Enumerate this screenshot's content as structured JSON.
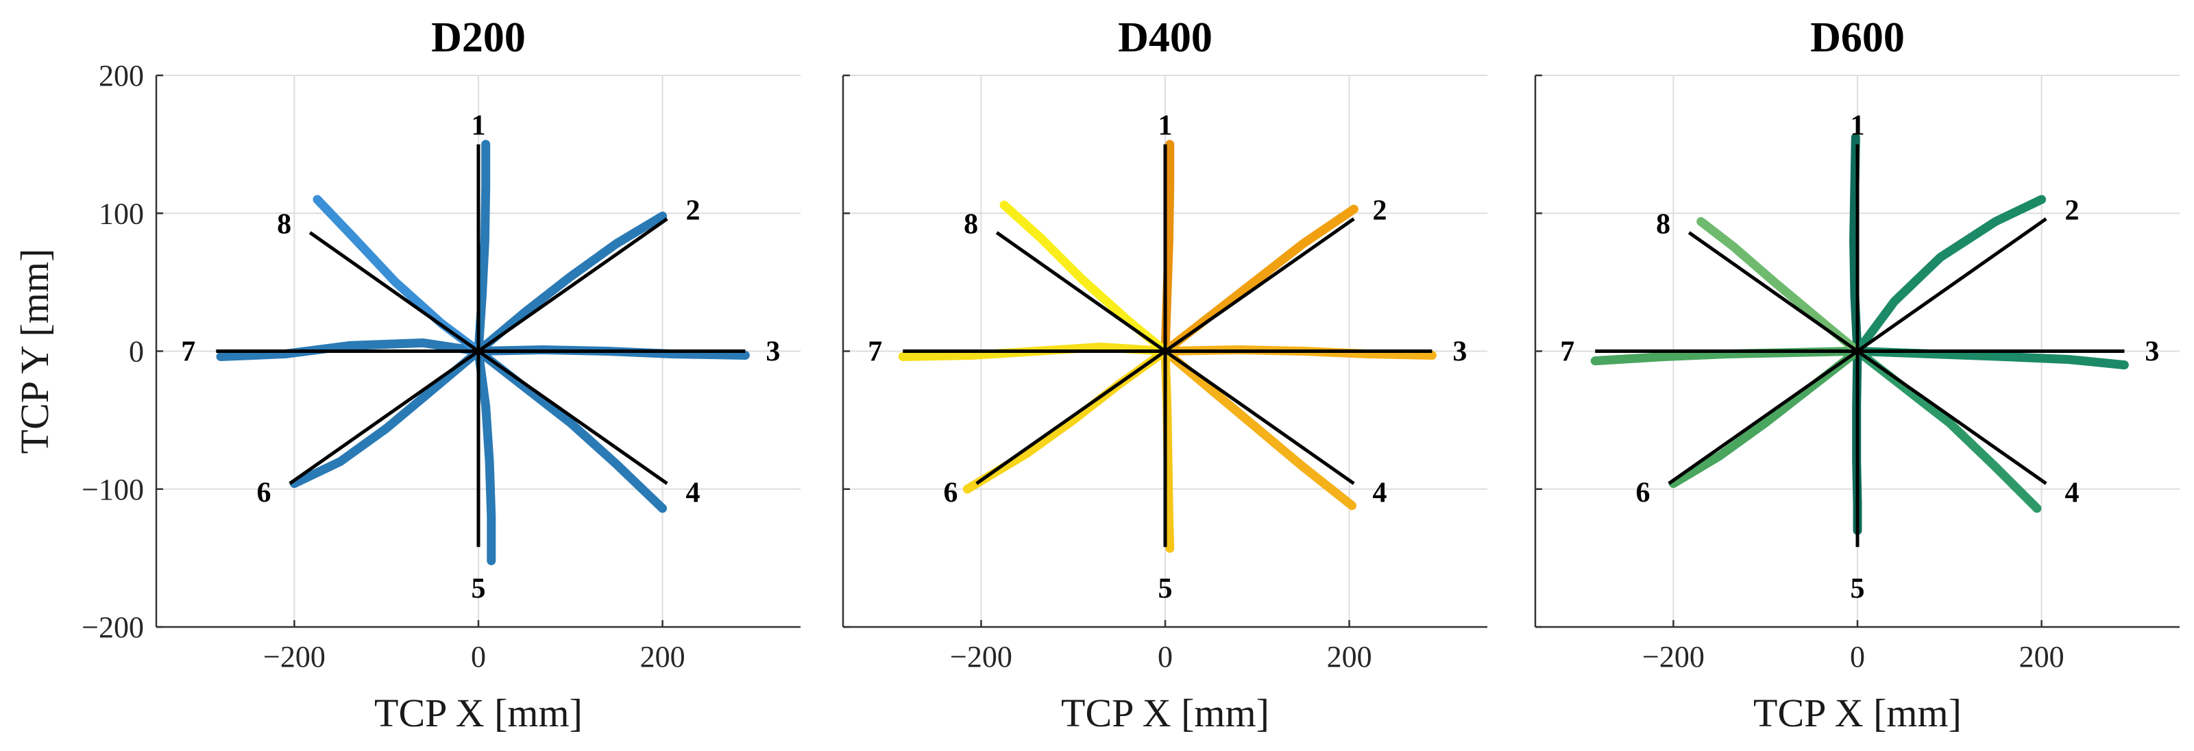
{
  "chart_data": [
    {
      "type": "line",
      "title": "D200",
      "xlabel": "TCP X [mm]",
      "ylabel": "TCP Y [mm]",
      "xlim": [
        -350,
        350
      ],
      "ylim": [
        -200,
        200
      ],
      "xticks": [
        -200,
        0,
        200
      ],
      "yticks": [
        -200,
        -100,
        0,
        100,
        200
      ],
      "xtick_labels": [
        "−200",
        "0",
        "200"
      ],
      "ytick_labels": [
        "−200",
        "−100",
        "0",
        "100",
        "200"
      ],
      "grid": true,
      "colors": [
        "#2a7ab5",
        "#2a7ab5",
        "#2a7ab5",
        "#2a7ab5",
        "#2a7ab5",
        "#2a7ab5",
        "#2a7ab5",
        "#3a90d6"
      ],
      "reference_lines": [
        {
          "label": "1",
          "x": [
            0,
            0
          ],
          "y": [
            0,
            150
          ]
        },
        {
          "label": "2",
          "x": [
            0,
            205
          ],
          "y": [
            0,
            96
          ]
        },
        {
          "label": "3",
          "x": [
            0,
            290
          ],
          "y": [
            0,
            0
          ]
        },
        {
          "label": "4",
          "x": [
            0,
            205
          ],
          "y": [
            0,
            -96
          ]
        },
        {
          "label": "5",
          "x": [
            0,
            0
          ],
          "y": [
            0,
            -142
          ]
        },
        {
          "label": "6",
          "x": [
            0,
            -205
          ],
          "y": [
            0,
            -96
          ]
        },
        {
          "label": "7",
          "x": [
            0,
            -285
          ],
          "y": [
            0,
            0
          ]
        },
        {
          "label": "8",
          "x": [
            0,
            -183
          ],
          "y": [
            0,
            86
          ]
        }
      ],
      "trajectories": [
        {
          "dir": "1",
          "x": [
            0,
            4,
            7,
            8,
            8
          ],
          "y": [
            0,
            40,
            80,
            120,
            150
          ]
        },
        {
          "dir": "2",
          "x": [
            0,
            50,
            100,
            150,
            200
          ],
          "y": [
            0,
            28,
            54,
            78,
            98
          ]
        },
        {
          "dir": "3",
          "x": [
            0,
            70,
            140,
            210,
            290
          ],
          "y": [
            0,
            1,
            0,
            -2,
            -3
          ]
        },
        {
          "dir": "4",
          "x": [
            0,
            50,
            100,
            150,
            200
          ],
          "y": [
            0,
            -26,
            -52,
            -82,
            -114
          ]
        },
        {
          "dir": "5",
          "x": [
            0,
            8,
            12,
            14,
            14
          ],
          "y": [
            0,
            -40,
            -80,
            -120,
            -152
          ]
        },
        {
          "dir": "6",
          "x": [
            0,
            -50,
            -100,
            -150,
            -200
          ],
          "y": [
            0,
            -28,
            -56,
            -80,
            -96
          ]
        },
        {
          "dir": "7",
          "x": [
            0,
            -60,
            -140,
            -210,
            -280
          ],
          "y": [
            0,
            6,
            4,
            -2,
            -4
          ]
        },
        {
          "dir": "8",
          "x": [
            0,
            -40,
            -90,
            -135,
            -175
          ],
          "y": [
            0,
            20,
            50,
            82,
            110
          ]
        }
      ]
    },
    {
      "type": "line",
      "title": "D400",
      "xlabel": "TCP X [mm]",
      "ylabel": "",
      "xlim": [
        -350,
        350
      ],
      "ylim": [
        -200,
        200
      ],
      "xticks": [
        -200,
        0,
        200
      ],
      "yticks": [
        -200,
        -100,
        0,
        100,
        200
      ],
      "xtick_labels": [
        "−200",
        "0",
        "200"
      ],
      "ytick_labels": [],
      "grid": true,
      "colors": [
        "#e8910f",
        "#f0a010",
        "#f5b11a",
        "#f5b11a",
        "#f5c518",
        "#f7d51a",
        "#f7e01a",
        "#f9ee1a"
      ],
      "reference_lines": [
        {
          "label": "1",
          "x": [
            0,
            0
          ],
          "y": [
            0,
            150
          ]
        },
        {
          "label": "2",
          "x": [
            0,
            205
          ],
          "y": [
            0,
            96
          ]
        },
        {
          "label": "3",
          "x": [
            0,
            290
          ],
          "y": [
            0,
            0
          ]
        },
        {
          "label": "4",
          "x": [
            0,
            205
          ],
          "y": [
            0,
            -96
          ]
        },
        {
          "label": "5",
          "x": [
            0,
            0
          ],
          "y": [
            0,
            -142
          ]
        },
        {
          "label": "6",
          "x": [
            0,
            -205
          ],
          "y": [
            0,
            -96
          ]
        },
        {
          "label": "7",
          "x": [
            0,
            -285
          ],
          "y": [
            0,
            0
          ]
        },
        {
          "label": "8",
          "x": [
            0,
            -183
          ],
          "y": [
            0,
            86
          ]
        }
      ],
      "trajectories": [
        {
          "dir": "1",
          "x": [
            0,
            2,
            4,
            5,
            5
          ],
          "y": [
            0,
            40,
            80,
            120,
            150
          ]
        },
        {
          "dir": "2",
          "x": [
            0,
            50,
            100,
            150,
            205
          ],
          "y": [
            0,
            26,
            52,
            78,
            103
          ]
        },
        {
          "dir": "3",
          "x": [
            0,
            80,
            150,
            220,
            290
          ],
          "y": [
            0,
            1,
            0,
            -2,
            -3
          ]
        },
        {
          "dir": "4",
          "x": [
            0,
            50,
            100,
            150,
            203
          ],
          "y": [
            0,
            -28,
            -56,
            -84,
            -112
          ]
        },
        {
          "dir": "5",
          "x": [
            0,
            2,
            3,
            4,
            5
          ],
          "y": [
            0,
            -40,
            -80,
            -120,
            -143
          ]
        },
        {
          "dir": "6",
          "x": [
            0,
            -50,
            -100,
            -150,
            -215
          ],
          "y": [
            0,
            -24,
            -50,
            -74,
            -100
          ]
        },
        {
          "dir": "7",
          "x": [
            0,
            -70,
            -140,
            -210,
            -285
          ],
          "y": [
            0,
            3,
            0,
            -3,
            -4
          ]
        },
        {
          "dir": "8",
          "x": [
            0,
            -40,
            -90,
            -135,
            -175
          ],
          "y": [
            0,
            22,
            52,
            82,
            106
          ]
        }
      ]
    },
    {
      "type": "line",
      "title": "D600",
      "xlabel": "TCP X [mm]",
      "ylabel": "",
      "xlim": [
        -350,
        350
      ],
      "ylim": [
        -200,
        200
      ],
      "xticks": [
        -200,
        0,
        200
      ],
      "yticks": [
        -200,
        -100,
        0,
        100,
        200
      ],
      "xtick_labels": [
        "−200",
        "0",
        "200"
      ],
      "ytick_labels": [],
      "grid": true,
      "colors": [
        "#0f6b5a",
        "#1c8a66",
        "#1c8a66",
        "#2e9968",
        "#0f6b5a",
        "#4aa55f",
        "#4aa55f",
        "#6fba6f"
      ],
      "reference_lines": [
        {
          "label": "1",
          "x": [
            0,
            0
          ],
          "y": [
            0,
            150
          ]
        },
        {
          "label": "2",
          "x": [
            0,
            205
          ],
          "y": [
            0,
            96
          ]
        },
        {
          "label": "3",
          "x": [
            0,
            290
          ],
          "y": [
            0,
            0
          ]
        },
        {
          "label": "4",
          "x": [
            0,
            205
          ],
          "y": [
            0,
            -96
          ]
        },
        {
          "label": "5",
          "x": [
            0,
            0
          ],
          "y": [
            0,
            -142
          ]
        },
        {
          "label": "6",
          "x": [
            0,
            -205
          ],
          "y": [
            0,
            -96
          ]
        },
        {
          "label": "7",
          "x": [
            0,
            -285
          ],
          "y": [
            0,
            0
          ]
        },
        {
          "label": "8",
          "x": [
            0,
            -183
          ],
          "y": [
            0,
            86
          ]
        }
      ],
      "trajectories": [
        {
          "dir": "1",
          "x": [
            0,
            -3,
            -4,
            -3,
            -2
          ],
          "y": [
            0,
            40,
            80,
            120,
            155
          ]
        },
        {
          "dir": "2",
          "x": [
            0,
            40,
            90,
            150,
            200
          ],
          "y": [
            0,
            36,
            68,
            94,
            110
          ]
        },
        {
          "dir": "3",
          "x": [
            0,
            80,
            160,
            230,
            290
          ],
          "y": [
            0,
            -2,
            -4,
            -6,
            -10
          ]
        },
        {
          "dir": "4",
          "x": [
            0,
            50,
            100,
            150,
            195
          ],
          "y": [
            0,
            -26,
            -52,
            -84,
            -114
          ]
        },
        {
          "dir": "5",
          "x": [
            0,
            -1,
            -1,
            0,
            0
          ],
          "y": [
            0,
            -40,
            -80,
            -110,
            -130
          ]
        },
        {
          "dir": "6",
          "x": [
            0,
            -50,
            -100,
            -150,
            -200
          ],
          "y": [
            0,
            -26,
            -52,
            -76,
            -96
          ]
        },
        {
          "dir": "7",
          "x": [
            0,
            -70,
            -140,
            -210,
            -285
          ],
          "y": [
            0,
            -1,
            -2,
            -4,
            -7
          ]
        },
        {
          "dir": "8",
          "x": [
            0,
            -40,
            -90,
            -135,
            -170
          ],
          "y": [
            0,
            22,
            50,
            76,
            94
          ]
        }
      ]
    }
  ]
}
